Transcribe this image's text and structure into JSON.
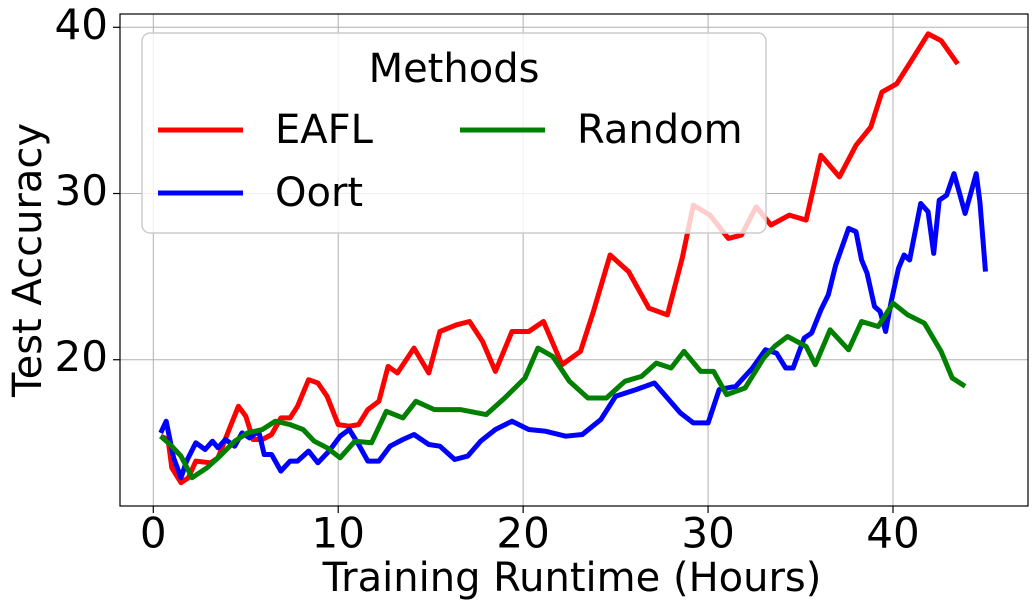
{
  "chart_data": {
    "type": "line",
    "x_label": "Training Runtime (Hours)",
    "y_label": "Test Accuracy",
    "xlim": [
      -1.8,
      47.3
    ],
    "ylim": [
      11.2,
      40.8
    ],
    "xticks": [
      0,
      10,
      20,
      30,
      40
    ],
    "yticks": [
      20,
      30,
      40
    ],
    "grid": true,
    "legend_title": "Methods",
    "legend_position": "upper left",
    "legend_columns": 2,
    "series": [
      {
        "name": "EAFL",
        "color": "#ff0000",
        "x": [
          0.4,
          0.8,
          1.0,
          1.5,
          1.9,
          2.3,
          3.1,
          3.5,
          4.1,
          4.6,
          5.0,
          5.4,
          5.9,
          6.4,
          6.9,
          7.4,
          7.8,
          8.4,
          8.9,
          9.4,
          10.0,
          10.6,
          11.1,
          11.6,
          12.2,
          12.7,
          13.2,
          14.1,
          14.9,
          15.5,
          16.4,
          17.1,
          17.8,
          18.5,
          19.4,
          20.3,
          21.1,
          22.1,
          23.1,
          23.8,
          24.7,
          25.7,
          26.8,
          27.8,
          28.6,
          29.2,
          30.1,
          31.1,
          31.8,
          32.6,
          33.4,
          34.4,
          35.3,
          36.1,
          37.1,
          38.0,
          38.8,
          39.4,
          40.2,
          41.0,
          41.9,
          42.6,
          43.5
        ],
        "values": [
          15.4,
          15.2,
          13.5,
          12.6,
          12.9,
          13.9,
          13.8,
          14.1,
          15.8,
          17.2,
          16.6,
          15.2,
          15.2,
          15.5,
          16.5,
          16.5,
          17.2,
          18.8,
          18.6,
          17.8,
          16.1,
          16.0,
          16.1,
          17.0,
          17.5,
          19.6,
          19.2,
          20.7,
          19.2,
          21.7,
          22.1,
          22.3,
          21.1,
          19.3,
          21.7,
          21.7,
          22.3,
          19.7,
          20.5,
          22.9,
          26.3,
          25.3,
          23.1,
          22.7,
          26.1,
          29.3,
          28.7,
          27.3,
          27.5,
          29.2,
          28.1,
          28.7,
          28.4,
          32.3,
          31.0,
          32.9,
          34.0,
          36.1,
          36.6,
          38.0,
          39.6,
          39.2,
          37.8
        ]
      },
      {
        "name": "Oort",
        "color": "#0000ff",
        "x": [
          0.4,
          0.7,
          1.1,
          1.5,
          1.8,
          2.3,
          2.8,
          3.2,
          3.5,
          3.9,
          4.4,
          4.8,
          5.2,
          5.7,
          6.0,
          6.4,
          6.9,
          7.4,
          7.8,
          8.4,
          8.9,
          9.5,
          10.1,
          10.6,
          11.1,
          11.6,
          12.2,
          12.8,
          13.5,
          14.1,
          14.9,
          15.5,
          16.3,
          17.0,
          17.7,
          18.5,
          19.4,
          20.3,
          21.2,
          22.3,
          23.2,
          24.2,
          25.0,
          26.1,
          27.1,
          27.8,
          28.5,
          29.2,
          30.0,
          30.6,
          31.5,
          32.4,
          33.1,
          33.7,
          34.2,
          34.6,
          35.2,
          35.6,
          36.1,
          36.5,
          36.9,
          37.6,
          38.0,
          38.3,
          38.6,
          39.0,
          39.3,
          39.6,
          39.9,
          40.3,
          40.6,
          40.9,
          41.5,
          41.9,
          42.2,
          42.5,
          42.9,
          43.3,
          43.6,
          43.9,
          44.2,
          44.5,
          44.7,
          45.0
        ],
        "values": [
          15.6,
          16.3,
          14.1,
          12.9,
          13.9,
          15.0,
          14.6,
          15.1,
          14.7,
          15.2,
          14.8,
          15.6,
          15.3,
          15.7,
          14.3,
          14.3,
          13.3,
          13.9,
          13.9,
          14.5,
          13.8,
          14.5,
          15.4,
          15.8,
          14.9,
          13.9,
          13.9,
          14.8,
          15.2,
          15.5,
          14.9,
          14.8,
          14.0,
          14.2,
          15.1,
          15.8,
          16.3,
          15.8,
          15.7,
          15.4,
          15.5,
          16.4,
          17.8,
          18.2,
          18.6,
          17.7,
          16.8,
          16.2,
          16.2,
          18.2,
          18.4,
          19.5,
          20.6,
          20.4,
          19.5,
          19.5,
          21.3,
          21.6,
          23.0,
          23.9,
          25.7,
          27.9,
          27.7,
          26.0,
          25.2,
          23.2,
          22.9,
          21.7,
          23.5,
          25.5,
          26.3,
          26.0,
          29.4,
          28.9,
          26.4,
          29.6,
          29.9,
          31.2,
          30.0,
          28.8,
          30.0,
          31.2,
          29.5,
          25.3
        ]
      },
      {
        "name": "Random",
        "color": "#008000",
        "x": [
          0.4,
          1.0,
          1.5,
          2.1,
          2.9,
          3.6,
          4.4,
          5.1,
          5.9,
          6.6,
          7.4,
          8.1,
          8.7,
          9.4,
          10.1,
          10.9,
          11.8,
          12.6,
          13.5,
          14.2,
          15.2,
          16.6,
          18.0,
          19.0,
          20.1,
          20.8,
          21.6,
          22.5,
          23.5,
          24.5,
          25.5,
          26.4,
          27.2,
          28.0,
          28.7,
          29.6,
          30.3,
          31.0,
          32.0,
          33.0,
          33.6,
          34.3,
          35.3,
          35.8,
          36.6,
          37.6,
          38.3,
          39.2,
          40.0,
          40.8,
          41.7,
          42.6,
          43.2,
          43.9
        ],
        "values": [
          15.4,
          14.8,
          14.2,
          12.9,
          13.5,
          14.2,
          15.1,
          15.6,
          15.8,
          16.3,
          16.1,
          15.8,
          15.1,
          14.7,
          14.1,
          15.1,
          15.0,
          16.9,
          16.5,
          17.5,
          17.0,
          17.0,
          16.7,
          17.7,
          18.9,
          20.7,
          20.2,
          18.7,
          17.7,
          17.7,
          18.7,
          19.0,
          19.8,
          19.5,
          20.5,
          19.3,
          19.3,
          17.9,
          18.3,
          20.1,
          20.8,
          21.4,
          20.8,
          19.7,
          21.8,
          20.6,
          22.3,
          22.0,
          23.4,
          22.7,
          22.2,
          20.5,
          18.9,
          18.4
        ]
      }
    ]
  }
}
